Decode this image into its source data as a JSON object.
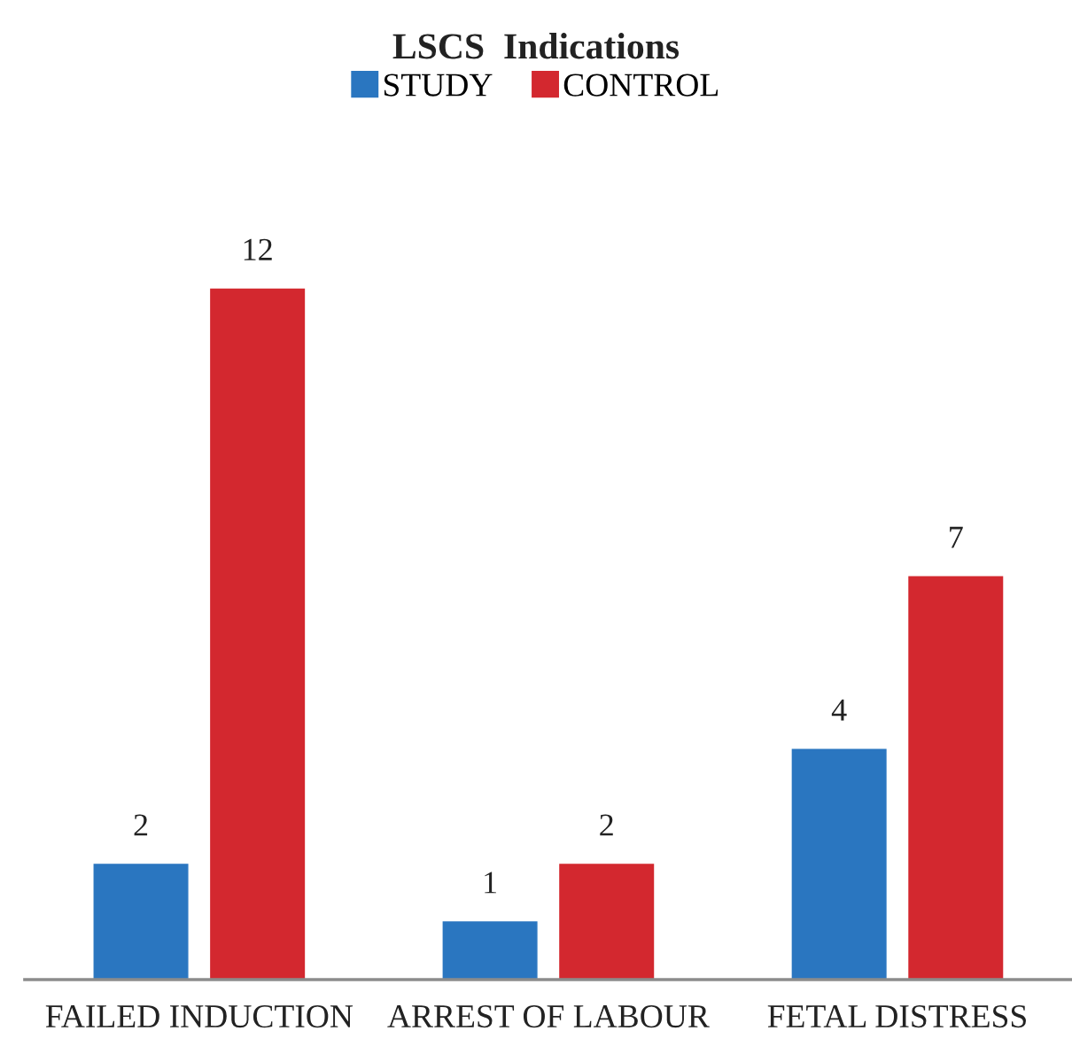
{
  "chart_data": {
    "type": "bar",
    "title": "LSCS  Indications",
    "categories": [
      "FAILED INDUCTION",
      "ARREST OF LABOUR",
      "FETAL DISTRESS"
    ],
    "series": [
      {
        "name": "STUDY",
        "color": "#2a76c0",
        "values": [
          2,
          1,
          4
        ]
      },
      {
        "name": "CONTROL",
        "color": "#d3282f",
        "values": [
          12,
          2,
          7
        ]
      }
    ],
    "data_labels": true,
    "legend": "top",
    "grid": false
  }
}
